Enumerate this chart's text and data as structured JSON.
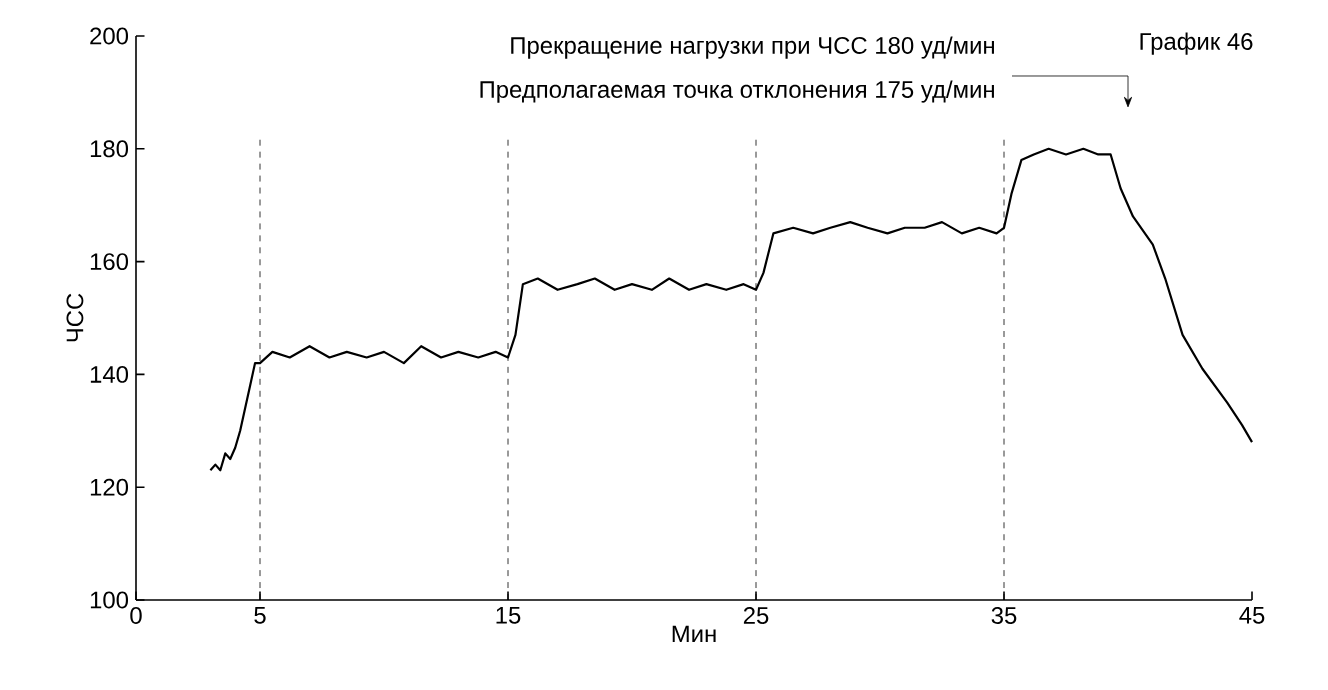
{
  "chart_data": {
    "type": "line",
    "xlabel": "Мин",
    "ylabel": "ЧСС",
    "x": [
      3.0,
      3.2,
      3.4,
      3.6,
      3.8,
      4.0,
      4.2,
      4.4,
      4.6,
      4.8,
      5.0,
      5.5,
      6.2,
      7.0,
      7.8,
      8.5,
      9.3,
      10.0,
      10.8,
      11.5,
      12.3,
      13.0,
      13.8,
      14.5,
      15.0,
      15.3,
      15.6,
      16.2,
      17.0,
      17.8,
      18.5,
      19.3,
      20.0,
      20.8,
      21.5,
      22.3,
      23.0,
      23.8,
      24.5,
      25.0,
      25.3,
      25.7,
      26.5,
      27.3,
      28.0,
      28.8,
      29.5,
      30.3,
      31.0,
      31.8,
      32.5,
      33.3,
      34.0,
      34.7,
      35.0,
      35.3,
      35.7,
      36.2,
      36.8,
      37.5,
      38.2,
      38.8,
      39.3,
      39.7,
      40.2,
      41.0,
      41.5,
      42.2,
      43.0,
      44.0,
      44.6,
      45.0
    ],
    "values": [
      123,
      124,
      123,
      126,
      125,
      127,
      130,
      134,
      138,
      142,
      142,
      144,
      143,
      145,
      143,
      144,
      143,
      144,
      142,
      145,
      143,
      144,
      143,
      144,
      143,
      147,
      156,
      157,
      155,
      156,
      157,
      155,
      156,
      155,
      157,
      155,
      156,
      155,
      156,
      155,
      158,
      165,
      166,
      165,
      166,
      167,
      166,
      165,
      166,
      166,
      167,
      165,
      166,
      165,
      166,
      172,
      178,
      179,
      180,
      179,
      180,
      179,
      179,
      173,
      168,
      163,
      157,
      147,
      141,
      135,
      131,
      128
    ],
    "color": "#000000",
    "line_style": "solid",
    "marker": "none",
    "xlim": [
      0,
      45
    ],
    "xticks": [
      0,
      5,
      15,
      25,
      35,
      45
    ],
    "ylim": [
      100,
      200
    ],
    "yticks": [
      100,
      120,
      140,
      160,
      180,
      200
    ],
    "grid": false,
    "ref_lines": [
      {
        "axis": "x",
        "value": 5,
        "line_style": "dashed"
      },
      {
        "axis": "x",
        "value": 15,
        "line_style": "dashed"
      },
      {
        "axis": "x",
        "value": 25,
        "line_style": "dashed"
      },
      {
        "axis": "x",
        "value": 35,
        "line_style": "dashed"
      }
    ],
    "annotations": [
      "Прекращение нагрузки при ЧСС 180 уд/мин",
      "Предполагаемая точка отклонения 175 уд/мин",
      "График 46"
    ]
  }
}
